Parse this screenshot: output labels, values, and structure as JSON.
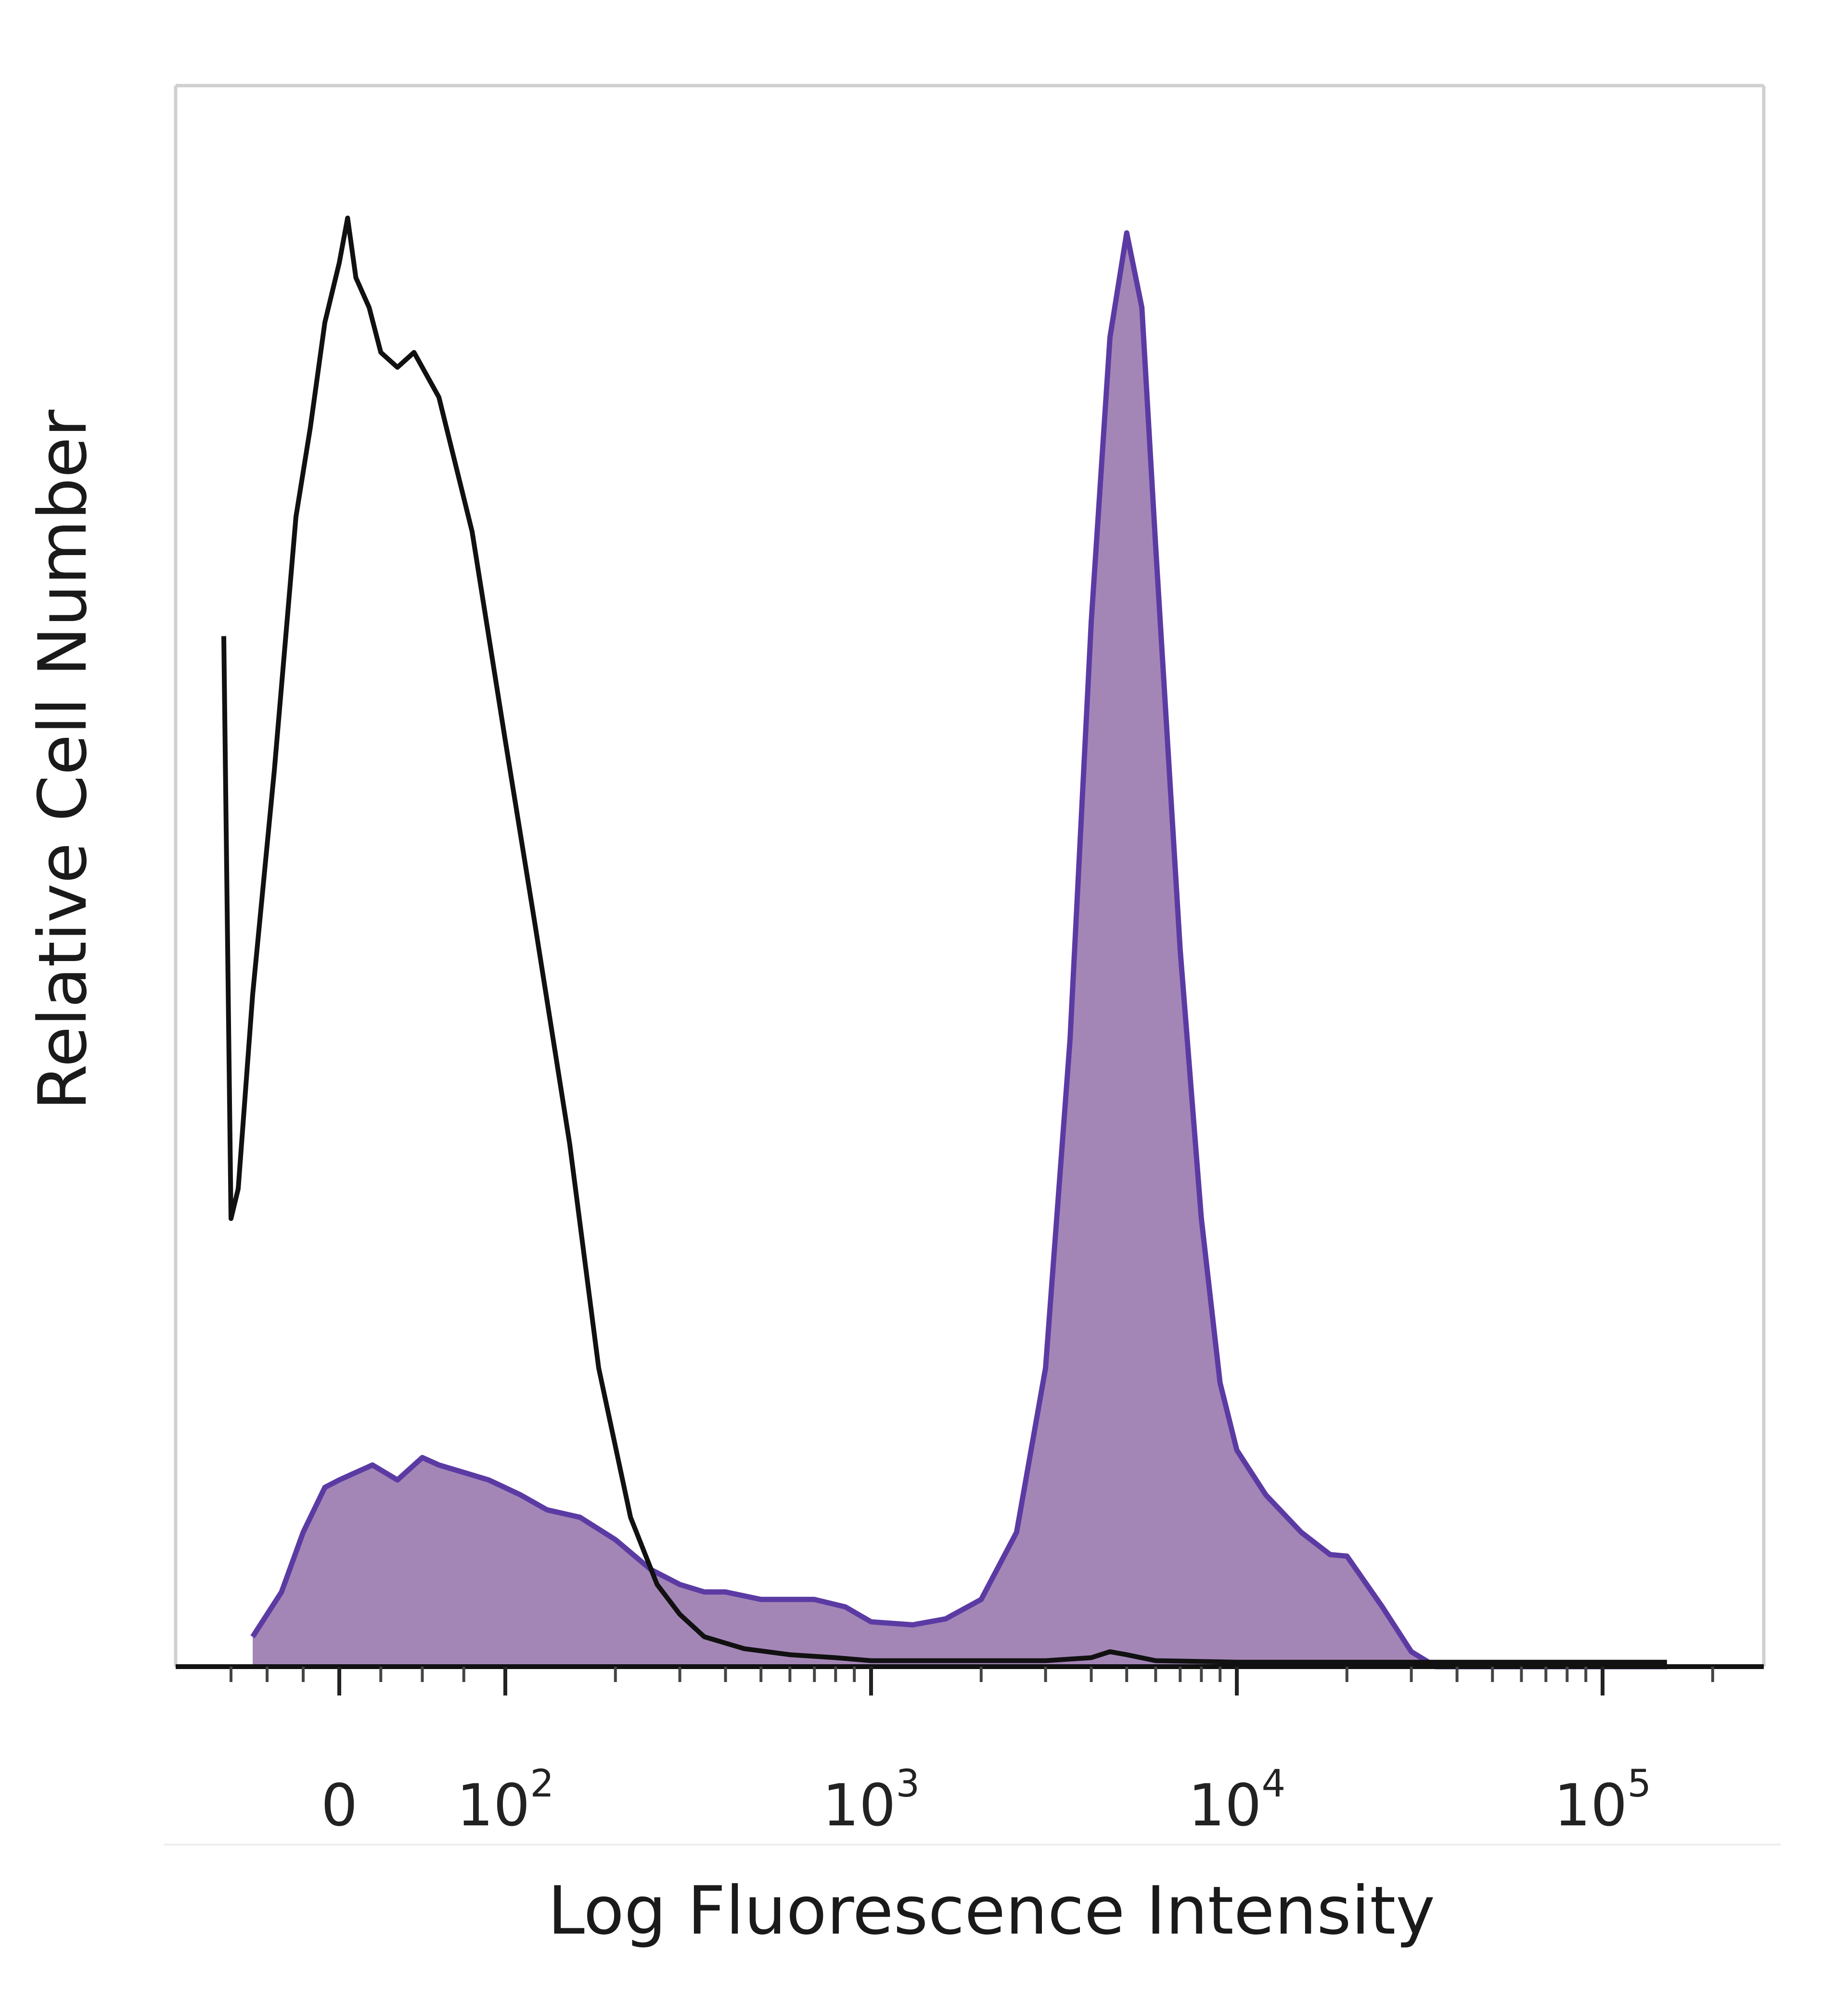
{
  "chart_data": {
    "type": "area",
    "xlabel": "Log Fluorescence Intensity",
    "ylabel": "Relative Cell Number",
    "x_scale": "biexponential",
    "x_ticks": [
      {
        "value": 0,
        "base": "0",
        "exp": ""
      },
      {
        "value": 100,
        "base": "10",
        "exp": "2"
      },
      {
        "value": 1000,
        "base": "10",
        "exp": "3"
      },
      {
        "value": 10000,
        "base": "10",
        "exp": "4"
      },
      {
        "value": 100000,
        "base": "10",
        "exp": "5"
      }
    ],
    "ylim": [
      0,
      1
    ],
    "grid": false,
    "series": [
      {
        "id": "stained",
        "fill": "#a486b6",
        "stroke": "#5b3ba3",
        "filled": true,
        "points": [
          [
            -60,
            0.02
          ],
          [
            -40,
            0.05
          ],
          [
            -25,
            0.09
          ],
          [
            -10,
            0.12
          ],
          [
            0,
            0.125
          ],
          [
            10,
            0.13
          ],
          [
            20,
            0.135
          ],
          [
            35,
            0.125
          ],
          [
            50,
            0.14
          ],
          [
            60,
            0.135
          ],
          [
            75,
            0.13
          ],
          [
            90,
            0.125
          ],
          [
            110,
            0.115
          ],
          [
            130,
            0.105
          ],
          [
            160,
            0.1
          ],
          [
            200,
            0.085
          ],
          [
            250,
            0.065
          ],
          [
            300,
            0.055
          ],
          [
            350,
            0.05
          ],
          [
            400,
            0.05
          ],
          [
            500,
            0.045
          ],
          [
            700,
            0.045
          ],
          [
            850,
            0.04
          ],
          [
            1000,
            0.03
          ],
          [
            1300,
            0.028
          ],
          [
            1600,
            0.032
          ],
          [
            2000,
            0.045
          ],
          [
            2500,
            0.09
          ],
          [
            3000,
            0.2
          ],
          [
            3500,
            0.42
          ],
          [
            4000,
            0.7
          ],
          [
            4500,
            0.89
          ],
          [
            5000,
            0.96
          ],
          [
            5500,
            0.91
          ],
          [
            6000,
            0.75
          ],
          [
            7000,
            0.48
          ],
          [
            8000,
            0.3
          ],
          [
            9000,
            0.19
          ],
          [
            10000,
            0.145
          ],
          [
            12000,
            0.115
          ],
          [
            15000,
            0.09
          ],
          [
            18000,
            0.075
          ],
          [
            20000,
            0.074
          ],
          [
            25000,
            0.04
          ],
          [
            30000,
            0.01
          ],
          [
            35000,
            0
          ],
          [
            100000,
            0
          ],
          [
            150000,
            0
          ]
        ]
      },
      {
        "id": "control",
        "fill": "none",
        "stroke": "#111111",
        "filled": false,
        "points": [
          [
            -80,
            0.69
          ],
          [
            -75,
            0.3
          ],
          [
            -70,
            0.32
          ],
          [
            -60,
            0.45
          ],
          [
            -45,
            0.6
          ],
          [
            -30,
            0.77
          ],
          [
            -20,
            0.83
          ],
          [
            -10,
            0.9
          ],
          [
            0,
            0.94
          ],
          [
            5,
            0.97
          ],
          [
            10,
            0.93
          ],
          [
            18,
            0.91
          ],
          [
            25,
            0.88
          ],
          [
            35,
            0.87
          ],
          [
            45,
            0.88
          ],
          [
            60,
            0.85
          ],
          [
            80,
            0.76
          ],
          [
            100,
            0.62
          ],
          [
            120,
            0.5
          ],
          [
            150,
            0.35
          ],
          [
            180,
            0.2
          ],
          [
            220,
            0.1
          ],
          [
            260,
            0.055
          ],
          [
            300,
            0.035
          ],
          [
            350,
            0.02
          ],
          [
            450,
            0.012
          ],
          [
            600,
            0.008
          ],
          [
            800,
            0.006
          ],
          [
            1000,
            0.004
          ],
          [
            2000,
            0.004
          ],
          [
            3000,
            0.004
          ],
          [
            4000,
            0.006
          ],
          [
            4500,
            0.01
          ],
          [
            5000,
            0.008
          ],
          [
            6000,
            0.004
          ],
          [
            10000,
            0.003
          ],
          [
            100000,
            0.003
          ],
          [
            150000,
            0.003
          ]
        ]
      }
    ]
  }
}
